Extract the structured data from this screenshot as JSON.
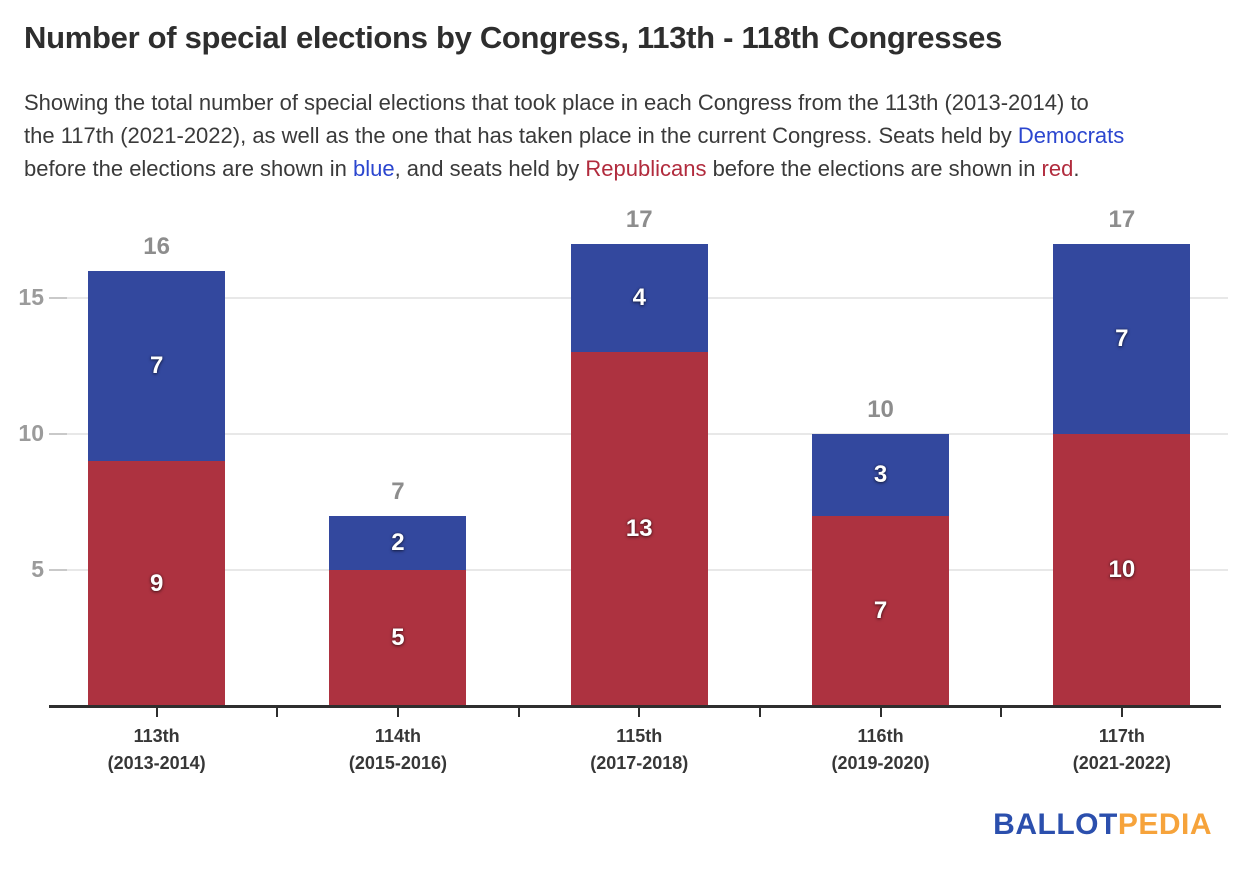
{
  "header": {
    "title": "Number of special elections by Congress, 113th - 118th Congresses",
    "subtitle_lines": [
      [
        {
          "t": "Showing the total number of special elections that took place in each Congress from the 113th (2013-2014) to",
          "s": "d"
        }
      ],
      [
        {
          "t": "the 117th (2021-2022), as well as the one that has taken place in the current Congress. Seats held by ",
          "s": "d"
        },
        {
          "t": "Democrats",
          "s": "b"
        }
      ],
      [
        {
          "t": "before the elections are shown in ",
          "s": "d"
        },
        {
          "t": "blue",
          "s": "b"
        },
        {
          "t": ", and seats held by ",
          "s": "d"
        },
        {
          "t": "Republicans",
          "s": "r"
        },
        {
          "t": " before the elections are shown in ",
          "s": "d"
        },
        {
          "t": "red",
          "s": "r"
        },
        {
          "t": ".",
          "s": "d"
        }
      ]
    ]
  },
  "colors": {
    "democrat_bar": "#33489e",
    "republican_bar": "#ad3240",
    "democrat_text": "#2b46cf",
    "republican_text": "#b12b3d",
    "total_label": "#8d8d8d",
    "y_label": "#9b9b9b",
    "gridline": "#e8e8e8",
    "y_tick": "#c9c9c9",
    "axis_line": "#2e2e2e",
    "logo_blue": "#2b4fad",
    "logo_orange": "#f6a33b"
  },
  "chart_data": {
    "type": "bar",
    "stacked": true,
    "title": "Number of special elections by Congress, 113th - 118th Congresses",
    "categories": [
      {
        "label": "113th",
        "sublabel": "(2013-2014)"
      },
      {
        "label": "114th",
        "sublabel": "(2015-2016)"
      },
      {
        "label": "115th",
        "sublabel": "(2017-2018)"
      },
      {
        "label": "116th",
        "sublabel": "(2019-2020)"
      },
      {
        "label": "117th",
        "sublabel": "(2021-2022)"
      }
    ],
    "series": [
      {
        "name": "Seats held by Republicans before election",
        "color_key": "republican_bar",
        "values": [
          9,
          5,
          13,
          7,
          10
        ]
      },
      {
        "name": "Seats held by Democrats before election",
        "color_key": "democrat_bar",
        "values": [
          7,
          2,
          4,
          3,
          7
        ]
      }
    ],
    "totals": [
      16,
      7,
      17,
      10,
      17
    ],
    "y_ticks": [
      5,
      10,
      15
    ],
    "ylim": [
      0,
      17.6
    ],
    "xlabel": "",
    "ylabel": "",
    "grid": true,
    "legend_position": "none"
  },
  "footer": {
    "logo_part1": "BALLOT",
    "logo_part2": "PEDIA"
  }
}
